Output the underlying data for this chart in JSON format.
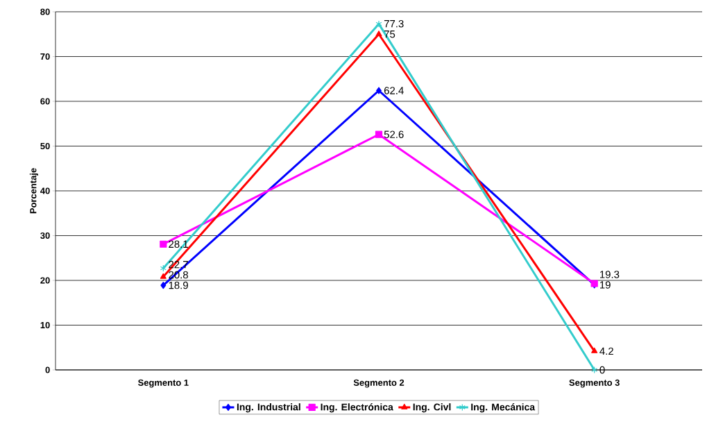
{
  "chart_data": {
    "type": "line",
    "ylabel": "Porcentaje",
    "categories": [
      "Segmento 1",
      "Segmento 2",
      "Segmento 3"
    ],
    "series": [
      {
        "name": "Ing. Industrial",
        "color": "#0000ff",
        "marker": "diamond",
        "values": [
          18.9,
          62.4,
          19
        ]
      },
      {
        "name": "Ing. Electrónica",
        "color": "#ff00ff",
        "marker": "square",
        "values": [
          28.1,
          52.6,
          19.3
        ]
      },
      {
        "name": "Ing. Civl",
        "color": "#ff0000",
        "marker": "triangle",
        "values": [
          20.8,
          75,
          4.2
        ]
      },
      {
        "name": "Ing. Mecánica",
        "color": "#33cccc",
        "marker": "cross",
        "values": [
          22.7,
          77.3,
          0
        ]
      }
    ],
    "ylim": [
      0,
      80
    ],
    "yticks": [
      0,
      10,
      20,
      30,
      40,
      50,
      60,
      70,
      80
    ],
    "grid": "y",
    "legend": "bottom",
    "data_labels": true,
    "line_style": "solid"
  }
}
